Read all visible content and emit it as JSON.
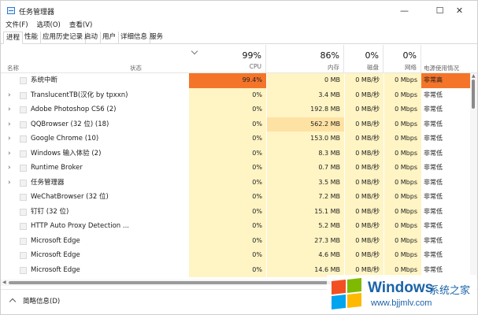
{
  "window": {
    "title": "任务管理器",
    "minimize": "—",
    "maximize": "☐",
    "close": "✕"
  },
  "menu": [
    "文件(F)",
    "选项(O)",
    "查看(V)"
  ],
  "tabs": [
    "进程",
    "性能",
    "应用历史记录",
    "启动",
    "用户",
    "详细信息",
    "服务"
  ],
  "active_tab": "进程",
  "header": {
    "name": "名称",
    "status": "状态",
    "cpu": {
      "pct": "99%",
      "label": "CPU"
    },
    "memory": {
      "pct": "86%",
      "label": "内存"
    },
    "disk": {
      "pct": "0%",
      "label": "磁盘"
    },
    "network": {
      "pct": "0%",
      "label": "网络"
    },
    "power": "电源使用情况"
  },
  "processes": [
    {
      "name": "系统中断",
      "expand": false,
      "cpu": "99.4%",
      "memory": "0 MB",
      "disk": "0 MB/秒",
      "network": "0 Mbps",
      "power": "非常高"
    },
    {
      "name": "TranslucentTB(汉化 by tpxxn)",
      "expand": true,
      "cpu": "0%",
      "memory": "3.4 MB",
      "disk": "0 MB/秒",
      "network": "0 Mbps",
      "power": "非常低"
    },
    {
      "name": "Adobe Photoshop CS6 (2)",
      "expand": true,
      "cpu": "0%",
      "memory": "192.8 MB",
      "disk": "0 MB/秒",
      "network": "0 Mbps",
      "power": "非常低"
    },
    {
      "name": "QQBrowser (32 位) (18)",
      "expand": true,
      "cpu": "0%",
      "memory": "562.2 MB",
      "disk": "0 MB/秒",
      "network": "0 Mbps",
      "power": "非常低"
    },
    {
      "name": "Google Chrome (10)",
      "expand": true,
      "cpu": "0%",
      "memory": "153.0 MB",
      "disk": "0 MB/秒",
      "network": "0 Mbps",
      "power": "非常低"
    },
    {
      "name": "Windows 输入体验 (2)",
      "expand": true,
      "cpu": "0%",
      "memory": "8.3 MB",
      "disk": "0 MB/秒",
      "network": "0 Mbps",
      "power": "非常低"
    },
    {
      "name": "Runtime Broker",
      "expand": true,
      "cpu": "0%",
      "memory": "0.7 MB",
      "disk": "0 MB/秒",
      "network": "0 Mbps",
      "power": "非常低"
    },
    {
      "name": "任务管理器",
      "expand": true,
      "cpu": "0%",
      "memory": "3.5 MB",
      "disk": "0 MB/秒",
      "network": "0 Mbps",
      "power": "非常低"
    },
    {
      "name": "WeChatBrowser (32 位)",
      "expand": false,
      "cpu": "0%",
      "memory": "7.2 MB",
      "disk": "0 MB/秒",
      "network": "0 Mbps",
      "power": "非常低"
    },
    {
      "name": "钉钉 (32 位)",
      "expand": false,
      "cpu": "0%",
      "memory": "15.1 MB",
      "disk": "0 MB/秒",
      "network": "0 Mbps",
      "power": "非常低"
    },
    {
      "name": "HTTP Auto Proxy Detection ...",
      "expand": false,
      "cpu": "0%",
      "memory": "5.2 MB",
      "disk": "0 MB/秒",
      "network": "0 Mbps",
      "power": "非常低"
    },
    {
      "name": "Microsoft Edge",
      "expand": false,
      "cpu": "0%",
      "memory": "27.3 MB",
      "disk": "0 MB/秒",
      "network": "0 Mbps",
      "power": "非常低"
    },
    {
      "name": "Microsoft Edge",
      "expand": false,
      "cpu": "0%",
      "memory": "4.6 MB",
      "disk": "0 MB/秒",
      "network": "0 Mbps",
      "power": "非常低"
    },
    {
      "name": "Microsoft Edge",
      "expand": false,
      "cpu": "0%",
      "memory": "14.6 MB",
      "disk": "0 MB/秒",
      "network": "0 Mbps",
      "power": "非常低"
    }
  ],
  "footer": {
    "fewer_details": "简略信息(D)"
  },
  "watermark": {
    "title": "Windows",
    "subtitle": "系统之家",
    "url": "www.bjjmlv.com"
  },
  "colors": {
    "heat_very_high": "#f4752a",
    "heat_high": "#fde2a4",
    "heat_light": "#fff4c4",
    "power_very_high_bg": "#f4752a",
    "watermark_blue": "#1b63a8"
  }
}
